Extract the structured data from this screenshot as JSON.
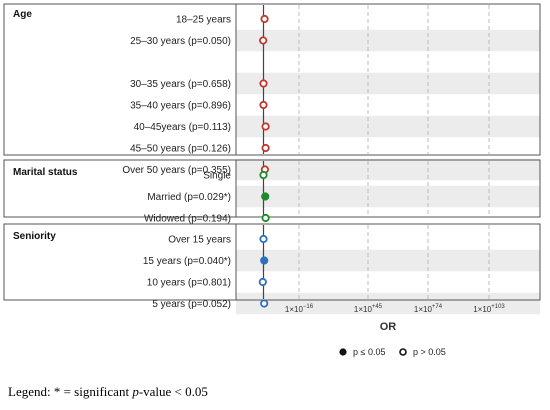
{
  "chart_data": {
    "type": "scatter",
    "xlabel": "OR",
    "x_ticks": [
      {
        "base": "1×10",
        "exp": "−16"
      },
      {
        "base": "1×10",
        "exp": "+45"
      },
      {
        "base": "1×10",
        "exp": "+74"
      },
      {
        "base": "1×10",
        "exp": "+103"
      }
    ],
    "reference_line": "OR = 1",
    "panels": [
      {
        "title": "Age",
        "color": "#c0392b",
        "rows": [
          {
            "label": "18–25 years",
            "p": "",
            "significant": false,
            "x_offset": 0.3
          },
          {
            "label": "25–30 years",
            "p": "(p=0.050)",
            "significant": false,
            "x_offset": -0.1
          },
          {
            "label": "",
            "p": "",
            "significant": null,
            "x_offset": null
          },
          {
            "label": "30–35 years",
            "p": "(p=0.658)",
            "significant": false,
            "x_offset": 0.0
          },
          {
            "label": "35–40 years",
            "p": "(p=0.896)",
            "significant": false,
            "x_offset": 0.0
          },
          {
            "label": "40–45years",
            "p": "(p=0.113)",
            "significant": false,
            "x_offset": 0.6
          },
          {
            "label": "45–50 years",
            "p": "(p=0.126)",
            "significant": false,
            "x_offset": 0.6
          },
          {
            "label": "Over 50 years",
            "p": "(p=0.355)",
            "significant": false,
            "x_offset": 0.4
          }
        ]
      },
      {
        "title": "Marital status",
        "color": "#1e8a2e",
        "rows": [
          {
            "label": "Single",
            "p": "",
            "significant": false,
            "x_offset": 0.0
          },
          {
            "label": "Married",
            "p": "(p=0.029*)",
            "significant": true,
            "x_offset": 0.5
          },
          {
            "label": "Widowed",
            "p": "(p=0.194)",
            "significant": false,
            "x_offset": 0.6
          }
        ]
      },
      {
        "title": "Seniority",
        "color": "#2e6fc2",
        "rows": [
          {
            "label": "Over 15 years",
            "p": "",
            "significant": false,
            "x_offset": 0.0
          },
          {
            "label": "15 years",
            "p": "(p=0.040*)",
            "significant": true,
            "x_offset": 0.2
          },
          {
            "label": "10 years",
            "p": "(p=0.801)",
            "significant": false,
            "x_offset": -0.2
          },
          {
            "label": "5 years",
            "p": "(p=0.052)",
            "significant": false,
            "x_offset": 0.2
          }
        ]
      }
    ],
    "legend": {
      "position": "bottom",
      "filled_label": "p ≤ 0.05",
      "open_label": "p > 0.05"
    }
  },
  "caption": {
    "prefix": "Legend: * = significant ",
    "italic": "p",
    "suffix": "-value < 0.05"
  }
}
